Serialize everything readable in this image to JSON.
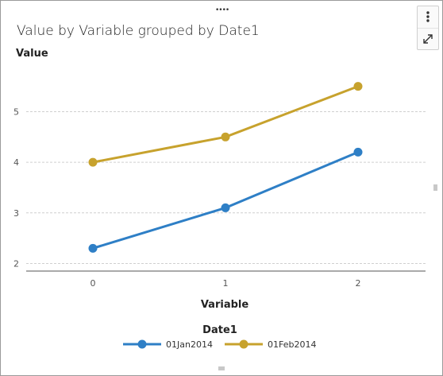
{
  "chart_data": {
    "type": "line",
    "title": "Value by Variable grouped by Date1",
    "xlabel": "Variable",
    "ylabel": "Value",
    "categories": [
      "0",
      "1",
      "2"
    ],
    "yticks": [
      "2",
      "3",
      "4",
      "5"
    ],
    "ylim": [
      1.85,
      5.95
    ],
    "grid": true,
    "legend_title": "Date1",
    "legend_position": "bottom",
    "series": [
      {
        "name": "01Jan2014",
        "color": "#2e7fc6",
        "values": [
          2.3,
          3.1,
          4.2
        ]
      },
      {
        "name": "01Feb2014",
        "color": "#c7a22d",
        "values": [
          4.0,
          4.5,
          5.5
        ]
      }
    ]
  },
  "toolbar": {
    "more_icon": "vertical-ellipsis-icon",
    "expand_icon": "expand-diagonal-icon"
  }
}
